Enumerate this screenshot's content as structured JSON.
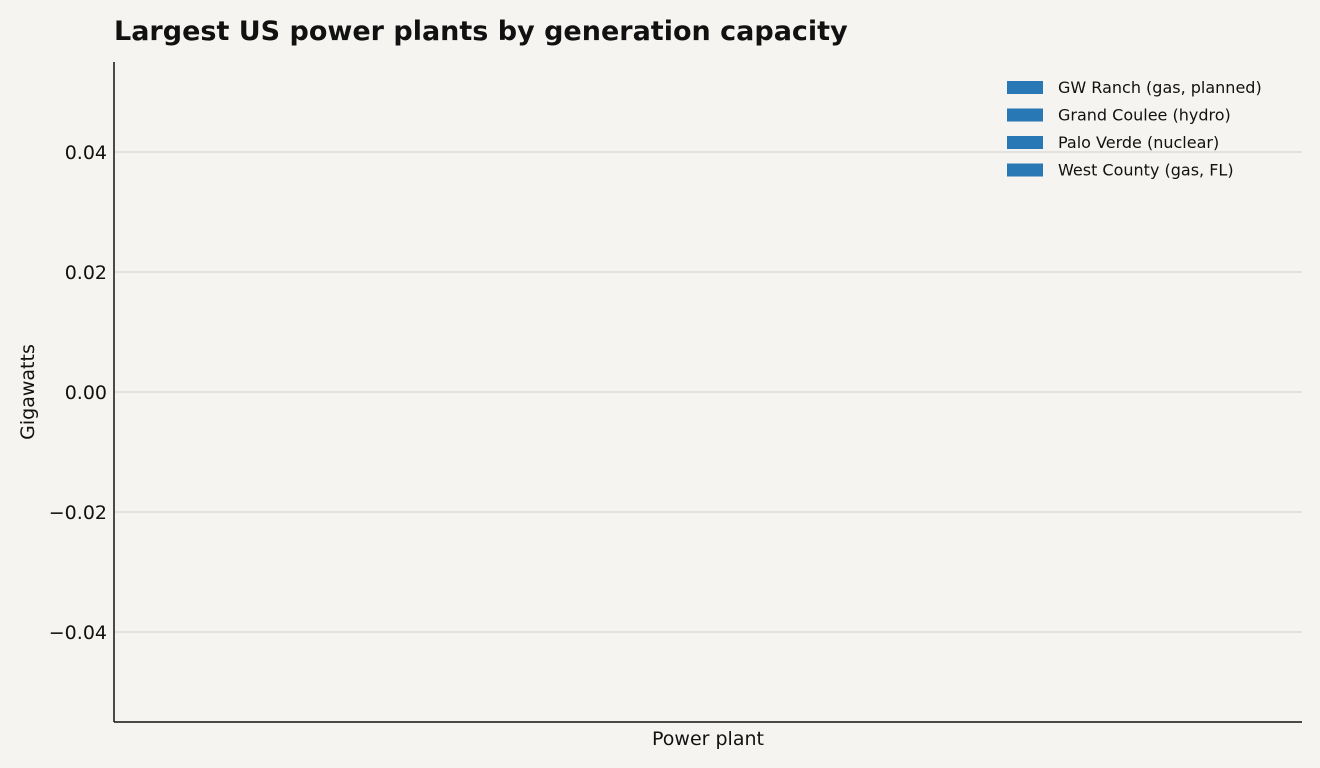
{
  "chart_data": {
    "type": "bar",
    "title": "Largest US power plants by generation capacity",
    "xlabel": "Power plant",
    "ylabel": "Gigawatts",
    "ylim": [
      -0.055,
      0.055
    ],
    "yticks": [
      0.04,
      0.02,
      0.0,
      -0.02,
      -0.04
    ],
    "ytick_labels": [
      "0.04",
      "0.02",
      "0.00",
      "−0.02",
      "−0.04"
    ],
    "grid": "horizontal",
    "legend_position": "top-right",
    "bar_color": "#2878b5",
    "series": [
      {
        "name": "GW Ranch (gas, planned)",
        "values": []
      },
      {
        "name": "Grand Coulee (hydro)",
        "values": []
      },
      {
        "name": "Palo Verde (nuclear)",
        "values": []
      },
      {
        "name": "West County (gas, FL)",
        "values": []
      }
    ]
  }
}
